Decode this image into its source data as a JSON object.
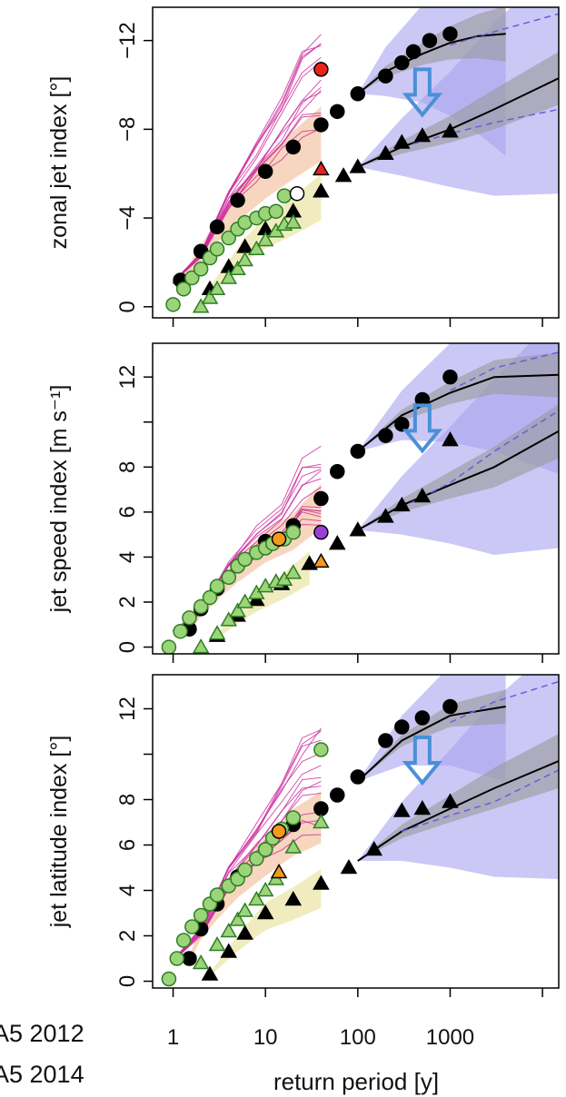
{
  "colors": {
    "obs": "#000000",
    "model_green": "#9cd47a",
    "model_green_edge": "#2f7d23",
    "magenta": "#cc2b9c",
    "yellow_band": "#e6dc8c",
    "orange_band": "#f0b58a",
    "blue_band": "#a9a4f0",
    "grey_band": "#9a9a9a",
    "arrow": "#4a90d9",
    "dashed": "#6a5ce0"
  },
  "legend": [
    "A5 2012",
    "A5 2014"
  ],
  "chart_data": [
    {
      "type": "scatter",
      "ylabel": "zonal jet index [°]",
      "xlabel": "",
      "x_scale": "log",
      "xlim": [
        0.6,
        15000
      ],
      "ylim": [
        0.5,
        -13.5
      ],
      "y_ticks": [
        0,
        -4,
        -8,
        -12
      ],
      "y_tick_labels": [
        "0",
        "−4",
        "−8",
        "−12"
      ],
      "x_ticks": [
        1,
        10,
        100,
        1000,
        10000
      ],
      "x_tick_labels": [],
      "series": [
        {
          "marker": "circle",
          "style": "black",
          "x": [
            1.2,
            2,
            3,
            5,
            10,
            20,
            40,
            60,
            100,
            200,
            300,
            400,
            600,
            1000
          ],
          "y": [
            -1.2,
            -2.5,
            -3.6,
            -4.8,
            -6.1,
            -7.2,
            -8.2,
            -8.8,
            -9.6,
            -10.4,
            -11.0,
            -11.5,
            -12.0,
            -12.3
          ]
        },
        {
          "marker": "triangle",
          "style": "black",
          "x": [
            2.5,
            4,
            6,
            10,
            20,
            40,
            70,
            100,
            200,
            300,
            500,
            1000
          ],
          "y": [
            -0.8,
            -1.8,
            -2.7,
            -3.5,
            -4.3,
            -5.2,
            -5.9,
            -6.3,
            -6.9,
            -7.4,
            -7.7,
            -7.9
          ]
        },
        {
          "marker": "circle",
          "style": "green",
          "x": [
            1,
            1.3,
            1.6,
            2,
            2.5,
            3,
            4,
            5,
            6,
            8,
            10,
            13,
            16
          ],
          "y": [
            -0.1,
            -0.8,
            -1.3,
            -1.7,
            -2.2,
            -2.6,
            -3.1,
            -3.5,
            -3.8,
            -4.0,
            -4.2,
            -4.3,
            -5.0
          ]
        },
        {
          "marker": "triangle",
          "style": "green",
          "x": [
            2,
            2.5,
            3,
            4,
            5,
            6,
            8,
            10,
            13,
            16,
            20
          ],
          "y": [
            0,
            -0.4,
            -0.8,
            -1.3,
            -1.7,
            -2.1,
            -2.6,
            -3.0,
            -3.4,
            -3.7,
            -3.8
          ]
        },
        {
          "marker": "circle",
          "style": "red",
          "x": [
            40
          ],
          "y": [
            -10.7
          ]
        },
        {
          "marker": "triangle",
          "style": "red",
          "x": [
            40
          ],
          "y": [
            -6.2
          ]
        },
        {
          "marker": "circle",
          "style": "open",
          "x": [
            22
          ],
          "y": [
            -5.1
          ]
        }
      ],
      "fits": [
        {
          "x": [
            100,
            200,
            500,
            1000,
            2000,
            4000
          ],
          "y": [
            -9.6,
            -10.6,
            -11.4,
            -11.9,
            -12.2,
            -12.3
          ],
          "dash": false
        },
        {
          "x": [
            100,
            300,
            1000,
            3000,
            15000
          ],
          "y": [
            -6.3,
            -7.2,
            -8.0,
            -8.9,
            -10.3
          ],
          "dash": false
        },
        {
          "x": [
            1000,
            3000,
            15000
          ],
          "y": [
            -11.8,
            -12.4,
            -13.2
          ],
          "dash": true
        },
        {
          "x": [
            300,
            1000,
            3000,
            15000
          ],
          "y": [
            -7.2,
            -7.8,
            -8.3,
            -8.9
          ],
          "dash": true
        }
      ],
      "arrow": true
    },
    {
      "type": "scatter",
      "ylabel": "jet speed index [m s⁻¹]",
      "xlabel": "",
      "x_scale": "log",
      "xlim": [
        0.6,
        15000
      ],
      "ylim": [
        -0.3,
        13.5
      ],
      "y_ticks": [
        0,
        2,
        4,
        6,
        8,
        10,
        12
      ],
      "y_tick_labels": [
        "0",
        "2",
        "4",
        "6",
        "8",
        "",
        "12"
      ],
      "x_ticks": [
        1,
        10,
        100,
        1000,
        10000
      ],
      "x_tick_labels": [],
      "series": [
        {
          "marker": "circle",
          "style": "black",
          "x": [
            1.5,
            2,
            3,
            5,
            10,
            20,
            40,
            60,
            100,
            200,
            300,
            500,
            1000
          ],
          "y": [
            0.8,
            1.7,
            2.6,
            3.6,
            4.7,
            5.4,
            6.6,
            7.8,
            8.7,
            9.4,
            9.9,
            11.0,
            12.0
          ]
        },
        {
          "marker": "triangle",
          "style": "black",
          "x": [
            3,
            5,
            8,
            15,
            30,
            60,
            100,
            200,
            300,
            500,
            1000
          ],
          "y": [
            0.5,
            1.4,
            2.1,
            2.8,
            3.7,
            4.6,
            5.2,
            5.8,
            6.3,
            6.7,
            9.2
          ]
        },
        {
          "marker": "circle",
          "style": "green",
          "x": [
            0.9,
            1.2,
            1.5,
            2,
            2.5,
            3,
            4,
            5,
            6,
            8,
            10,
            12,
            16,
            20
          ],
          "y": [
            0,
            0.7,
            1.3,
            1.8,
            2.2,
            2.7,
            3.1,
            3.6,
            3.9,
            4.2,
            4.4,
            4.6,
            4.8,
            5.1
          ]
        },
        {
          "marker": "triangle",
          "style": "green",
          "x": [
            2,
            3,
            4,
            5,
            6,
            8,
            10,
            13,
            16,
            20
          ],
          "y": [
            0,
            0.6,
            1.2,
            1.6,
            2.0,
            2.4,
            2.7,
            2.9,
            3.0,
            3.3
          ]
        },
        {
          "marker": "circle",
          "style": "orange",
          "x": [
            14
          ],
          "y": [
            4.8
          ]
        },
        {
          "marker": "triangle",
          "style": "orange",
          "x": [
            40
          ],
          "y": [
            3.8
          ]
        },
        {
          "marker": "circle",
          "style": "purple",
          "x": [
            40
          ],
          "y": [
            5.1
          ]
        }
      ],
      "fits": [
        {
          "x": [
            100,
            300,
            1000,
            3000,
            15000
          ],
          "y": [
            8.7,
            10.3,
            11.3,
            12.0,
            12.1
          ],
          "dash": false
        },
        {
          "x": [
            100,
            300,
            1000,
            3000,
            15000
          ],
          "y": [
            5.2,
            6.3,
            7.2,
            8.0,
            9.6
          ],
          "dash": false
        },
        {
          "x": [
            1000,
            3000,
            15000
          ],
          "y": [
            11.4,
            12.4,
            13.1
          ],
          "dash": true
        },
        {
          "x": [
            300,
            1000,
            3000,
            15000
          ],
          "y": [
            6.2,
            7.3,
            8.7,
            10.5
          ],
          "dash": true
        }
      ],
      "arrow": true
    },
    {
      "type": "scatter",
      "ylabel": "jet latitude index [°]",
      "xlabel": "return period [y]",
      "x_scale": "log",
      "xlim": [
        0.6,
        15000
      ],
      "ylim": [
        -0.3,
        13.5
      ],
      "y_ticks": [
        0,
        2,
        4,
        6,
        8,
        10,
        12
      ],
      "y_tick_labels": [
        "0",
        "2",
        "4",
        "6",
        "8",
        "",
        "12"
      ],
      "x_ticks": [
        1,
        10,
        100,
        1000,
        10000
      ],
      "x_tick_labels": [
        "1",
        "10",
        "100",
        "1000",
        ""
      ],
      "series": [
        {
          "marker": "circle",
          "style": "black",
          "x": [
            1.5,
            2,
            3,
            5,
            10,
            20,
            40,
            60,
            100,
            200,
            300,
            500,
            1000
          ],
          "y": [
            1.0,
            2.3,
            3.4,
            4.6,
            5.8,
            6.9,
            7.6,
            8.2,
            9.0,
            10.6,
            11.2,
            11.6,
            12.1
          ]
        },
        {
          "marker": "triangle",
          "style": "black",
          "x": [
            2.5,
            4,
            6,
            10,
            20,
            40,
            80,
            150,
            300,
            500,
            1000
          ],
          "y": [
            0.3,
            1.3,
            2.1,
            3.0,
            3.6,
            4.3,
            5.0,
            5.8,
            7.5,
            7.6,
            7.9
          ]
        },
        {
          "marker": "circle",
          "style": "green",
          "x": [
            0.9,
            1.1,
            1.3,
            1.6,
            2,
            2.5,
            3,
            4,
            5,
            6,
            8,
            10,
            12,
            15,
            20,
            40
          ],
          "y": [
            0.1,
            1.0,
            1.8,
            2.4,
            2.9,
            3.4,
            3.8,
            4.2,
            4.5,
            4.9,
            5.4,
            5.8,
            6.3,
            6.7,
            7.2,
            10.2
          ]
        },
        {
          "marker": "triangle",
          "style": "green",
          "x": [
            2,
            3,
            4,
            5,
            6,
            8,
            10,
            13,
            20,
            40
          ],
          "y": [
            0.8,
            1.6,
            2.2,
            2.7,
            3.1,
            3.6,
            4.0,
            4.5,
            5.9,
            7.0
          ]
        },
        {
          "marker": "circle",
          "style": "orange",
          "x": [
            14
          ],
          "y": [
            6.6
          ]
        },
        {
          "marker": "triangle",
          "style": "orange",
          "x": [
            14
          ],
          "y": [
            4.8
          ]
        }
      ],
      "fits": [
        {
          "x": [
            100,
            300,
            1000,
            4000
          ],
          "y": [
            8.8,
            10.6,
            11.7,
            12.1
          ],
          "dash": false
        },
        {
          "x": [
            100,
            300,
            1000,
            3000,
            15000
          ],
          "y": [
            5.3,
            6.6,
            7.6,
            8.5,
            9.7
          ],
          "dash": false
        },
        {
          "x": [
            1000,
            3000,
            15000
          ],
          "y": [
            11.4,
            12.3,
            13.2
          ],
          "dash": true
        },
        {
          "x": [
            300,
            1000,
            3000,
            15000
          ],
          "y": [
            6.6,
            7.3,
            7.9,
            9.3
          ],
          "dash": true
        }
      ],
      "arrow": true
    }
  ]
}
